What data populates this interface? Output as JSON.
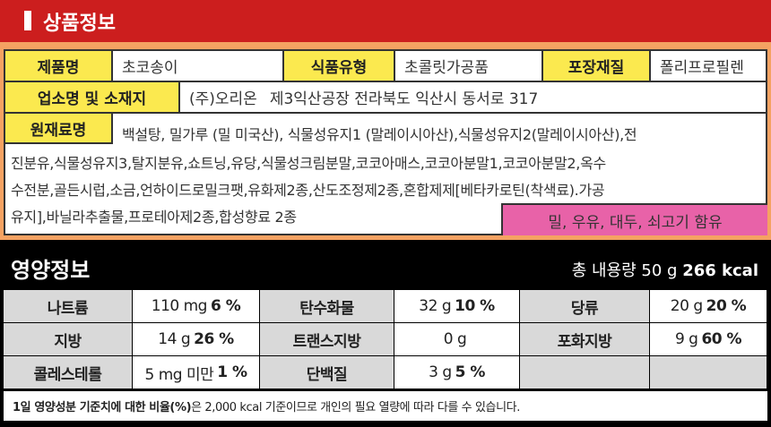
{
  "header": {
    "title": "상품정보"
  },
  "product": {
    "name_label": "제품명",
    "name": "초코송이",
    "type_label": "식품유형",
    "type": "초콜릿가공품",
    "pack_label": "포장재질",
    "pack": "폴리프로필렌",
    "maker_label": "업소명 및 소재지",
    "maker": "(주)오리온",
    "address": "제3익산공장 전라북도 익산시 동서로 317",
    "ingredients_label": "원재료명",
    "ingredients_lines": [
      "백설탕, 밀가루 (밀 미국산), 식물성유지1 (말레이시아산),식물성유지2(말레이시아산),전",
      "진분유,식물성유지3,탈지분유,쇼트닝,유당,식물성크림분말,코코아매스,코코아분말1,코코아분말2,옥수",
      "수전분,골든시럽,소금,언하이드로밀크팻,유화제2종,산도조정제2종,혼합제제[베타카로틴(착색료).가공",
      "유지],바닐라추출물,프로테아제2종,합성향료 2종"
    ],
    "allergy": "밀, 우유, 대두, 쇠고기 함유"
  },
  "nutrition": {
    "title": "영양정보",
    "total_prefix": "총 내용량 50 g",
    "total_kcal": "266 kcal",
    "rows": [
      [
        {
          "name": "나트륨",
          "amount": "110 mg",
          "pct": "6 %"
        },
        {
          "name": "탄수화물",
          "amount": "32 g",
          "pct": "10 %"
        },
        {
          "name": "당류",
          "amount": "20 g",
          "pct": "20 %"
        }
      ],
      [
        {
          "name": "지방",
          "amount": "14 g",
          "pct": "26 %"
        },
        {
          "name": "트랜스지방",
          "amount": "0 g",
          "pct": ""
        },
        {
          "name": "포화지방",
          "amount": "9 g",
          "pct": "60 %"
        }
      ],
      [
        {
          "name": "콜레스테롤",
          "amount": "5 mg 미만",
          "pct": "1 %"
        },
        {
          "name": "단백질",
          "amount": "3 g",
          "pct": "5 %"
        }
      ]
    ],
    "footnote_bold": "1일 영양성분 기준치에 대한 비율(%)",
    "footnote": "은 2,000 kcal 기준이므로 개인의 필요 열량에 따라 다를 수 있습니다."
  },
  "colors": {
    "header": "#cc1e1e",
    "label": "#fbe94f",
    "allergy": "#e862a8",
    "border": "#f5a262"
  }
}
